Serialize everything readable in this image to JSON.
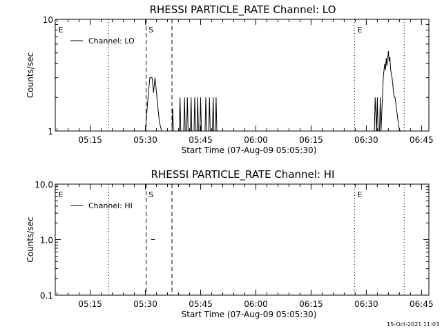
{
  "chart_data": [
    {
      "type": "line",
      "title": "RHESSI PARTICLE_RATE Channel: LO",
      "xlabel": "Start Time (07-Aug-09 05:05:30)",
      "ylabel": "Counts/sec",
      "y_scale": "log",
      "ylim": [
        1,
        10
      ],
      "yticks": [
        "1",
        "10"
      ],
      "xticks": [
        "05:15",
        "05:30",
        "05:45",
        "06:00",
        "06:15",
        "06:30",
        "06:45"
      ],
      "xlim_minutes_from_0500": [
        5.5,
        107
      ],
      "legend": {
        "label": "Channel: LO",
        "placement": "top-left"
      },
      "vlines_dotted_min": [
        20.0,
        86.8,
        100.3
      ],
      "vlines_dashed_min": [
        30.2,
        37.2
      ],
      "markers": [
        {
          "text": "E",
          "x_min": 6.0
        },
        {
          "text": "S",
          "x_min": 30.5
        },
        {
          "text": "E",
          "x_min": 87.2
        }
      ],
      "series": [
        {
          "x_min": [
            30.0,
            30.4,
            30.8,
            31.2,
            31.8,
            32.2,
            32.6,
            33.0,
            33.4,
            33.8,
            34.4,
            37.2,
            37.4,
            37.6,
            39.2,
            39.4,
            39.6,
            40.4,
            40.6,
            40.8,
            41.2,
            41.4,
            41.6,
            42.2,
            42.4,
            42.6,
            43.2,
            43.4,
            43.6,
            44.0,
            44.2,
            44.4,
            44.8,
            45.0,
            45.2,
            46.2,
            46.4,
            46.6,
            47.2,
            47.4,
            47.6,
            48.2,
            48.4,
            48.6,
            49.0,
            49.2,
            49.4,
            92.2,
            92.4,
            92.8,
            93.0,
            93.2,
            93.6,
            93.8,
            94.0,
            94.4,
            94.6,
            94.8,
            95.0,
            95.2,
            95.4,
            95.6,
            95.8,
            96.0,
            96.2,
            96.4,
            96.6,
            96.8,
            97.0,
            97.2,
            97.4,
            97.6,
            97.8,
            98.0,
            98.4,
            98.8,
            99.2
          ],
          "y": [
            1,
            1.5,
            2.2,
            3,
            3,
            2.2,
            3,
            2.2,
            1.6,
            1.2,
            1,
            1,
            1.6,
            1,
            1,
            2,
            1,
            1,
            2,
            1,
            1,
            2,
            1,
            1,
            2,
            1,
            1,
            2,
            1,
            1,
            2,
            1,
            1,
            2,
            1,
            1,
            2,
            1,
            1,
            2,
            1,
            1,
            2,
            1,
            1,
            2,
            1,
            1,
            2,
            1,
            2,
            1,
            1,
            2,
            1,
            2,
            3,
            3.5,
            4,
            3.5,
            4.5,
            3.8,
            4.5,
            5.2,
            4.2,
            4.6,
            3.6,
            3.2,
            3,
            2.6,
            2.2,
            2,
            2,
            1.8,
            1.4,
            1.1,
            1
          ]
        }
      ]
    },
    {
      "type": "line",
      "title": "RHESSI PARTICLE_RATE Channel: HI",
      "xlabel": "Start Time (07-Aug-09 05:05:30)",
      "ylabel": "Counts/sec",
      "y_scale": "log",
      "ylim": [
        0.1,
        10.0
      ],
      "yticks": [
        "0.1",
        "1.0",
        "10.0"
      ],
      "xticks": [
        "05:15",
        "05:30",
        "05:45",
        "06:00",
        "06:15",
        "06:30",
        "06:45"
      ],
      "xlim_minutes_from_0500": [
        5.5,
        107
      ],
      "legend": {
        "label": "Channel: HI",
        "placement": "top-left"
      },
      "vlines_dotted_min": [
        20.0,
        86.8,
        100.3
      ],
      "vlines_dashed_min": [
        30.2,
        37.2
      ],
      "markers": [
        {
          "text": "E",
          "x_min": 6.0
        },
        {
          "text": "S",
          "x_min": 30.5
        },
        {
          "text": "E",
          "x_min": 87.2
        }
      ],
      "series": [
        {
          "x_min": [
            31.5,
            32.6
          ],
          "y": [
            1.0,
            1.0
          ]
        }
      ]
    }
  ],
  "footer": {
    "timestamp": "15-Oct-2021 11:03"
  }
}
